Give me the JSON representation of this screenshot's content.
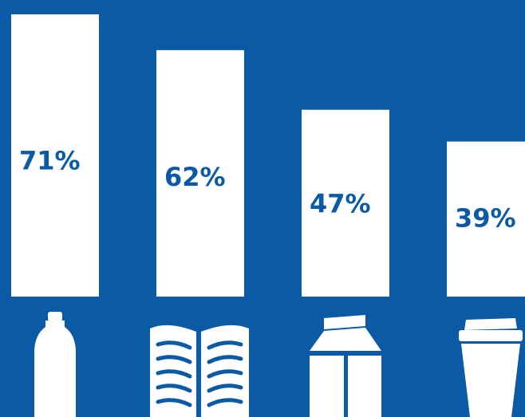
{
  "chart_data": {
    "type": "bar",
    "categories": [
      "plastic-bottle",
      "newspaper-magazine",
      "milk-carton",
      "coffee-cup"
    ],
    "values": [
      71,
      62,
      47,
      39
    ],
    "value_labels": [
      "71%",
      "62%",
      "47%",
      "39%"
    ],
    "ylim": [
      0,
      80
    ],
    "grid": false,
    "legend": "none"
  },
  "icons": [
    "bottle-icon",
    "open-book-icon",
    "milk-carton-icon",
    "coffee-cup-icon"
  ],
  "colors": {
    "background": "#0a5aa5",
    "bar": "#ffffff",
    "label": "#0a5aa5",
    "icon": "#ffffff"
  }
}
